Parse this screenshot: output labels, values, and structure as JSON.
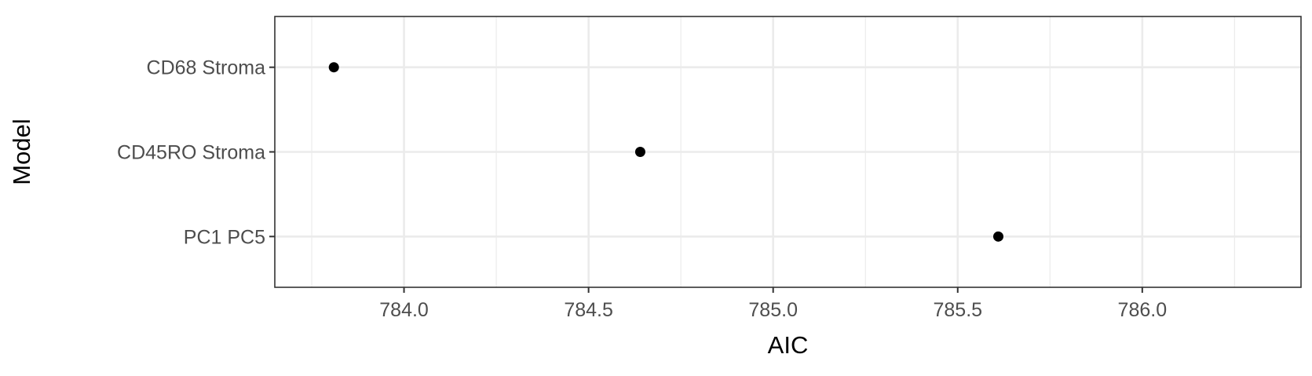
{
  "chart_data": {
    "type": "scatter",
    "title": "",
    "xlabel": "AIC",
    "ylabel": "Model",
    "xlim": [
      783.65,
      786.43
    ],
    "x_ticks": [
      784.0,
      784.5,
      785.0,
      785.5,
      786.0
    ],
    "x_tick_labels": [
      "784.0",
      "784.5",
      "785.0",
      "785.5",
      "786.0"
    ],
    "x_minor_ticks": [
      783.75,
      784.25,
      784.75,
      785.25,
      785.75,
      786.25
    ],
    "categories": [
      "CD68 Stroma",
      "CD45RO Stroma",
      "PC1  PC5"
    ],
    "points": [
      {
        "category": "CD68 Stroma",
        "x": 783.81
      },
      {
        "category": "CD45RO Stroma",
        "x": 784.64
      },
      {
        "category": "PC1  PC5",
        "x": 785.61
      }
    ],
    "grid": true,
    "legend": "none",
    "colors": {
      "point": "#000000",
      "major_grid": "#ebebeb",
      "minor_grid": "#ebebeb",
      "panel_border": "#333333",
      "tick_text": "#4d4d4d"
    }
  }
}
